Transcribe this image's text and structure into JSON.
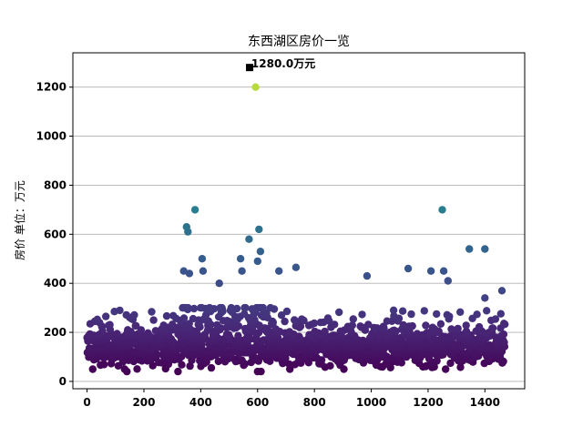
{
  "chart_data": {
    "type": "scatter",
    "title": "东西湖区房价一览",
    "xlabel": "",
    "ylabel": "房价 单位：万元",
    "xlim": [
      -50,
      1540
    ],
    "ylim": [
      -30,
      1340
    ],
    "x_ticks": [
      0,
      200,
      400,
      600,
      800,
      1000,
      1200,
      1400
    ],
    "y_ticks": [
      0,
      200,
      400,
      600,
      800,
      1000,
      1200
    ],
    "grid": "y",
    "colormap": "viridis",
    "color_range": [
      40,
      1280
    ],
    "max_marker": {
      "x": 572,
      "y": 1280,
      "shape": "square",
      "color": "#000000"
    },
    "annotation": {
      "x": 578,
      "y": 1280,
      "text": "1280.0万元"
    },
    "point_count_approx": 1470,
    "notable_points": [
      {
        "x": 593,
        "y": 1200
      },
      {
        "x": 350,
        "y": 630
      },
      {
        "x": 355,
        "y": 610
      },
      {
        "x": 380,
        "y": 700
      },
      {
        "x": 605,
        "y": 620
      },
      {
        "x": 570,
        "y": 580
      },
      {
        "x": 610,
        "y": 530
      },
      {
        "x": 1250,
        "y": 700
      },
      {
        "x": 1345,
        "y": 540
      },
      {
        "x": 1400,
        "y": 540
      },
      {
        "x": 340,
        "y": 450
      },
      {
        "x": 360,
        "y": 440
      },
      {
        "x": 405,
        "y": 500
      },
      {
        "x": 408,
        "y": 450
      },
      {
        "x": 465,
        "y": 400
      },
      {
        "x": 540,
        "y": 500
      },
      {
        "x": 545,
        "y": 450
      },
      {
        "x": 600,
        "y": 490
      },
      {
        "x": 675,
        "y": 450
      },
      {
        "x": 735,
        "y": 465
      },
      {
        "x": 985,
        "y": 430
      },
      {
        "x": 1130,
        "y": 460
      },
      {
        "x": 1210,
        "y": 450
      },
      {
        "x": 1255,
        "y": 450
      },
      {
        "x": 1270,
        "y": 410
      },
      {
        "x": 1400,
        "y": 340
      },
      {
        "x": 1460,
        "y": 370
      },
      {
        "x": 600,
        "y": 40
      },
      {
        "x": 612,
        "y": 40
      },
      {
        "x": 140,
        "y": 40
      },
      {
        "x": 320,
        "y": 40
      },
      {
        "x": 20,
        "y": 50
      }
    ],
    "bulk_distribution": {
      "x_range": [
        0,
        1470
      ],
      "typical_y_range": [
        70,
        260
      ],
      "center_y": 140
    }
  }
}
